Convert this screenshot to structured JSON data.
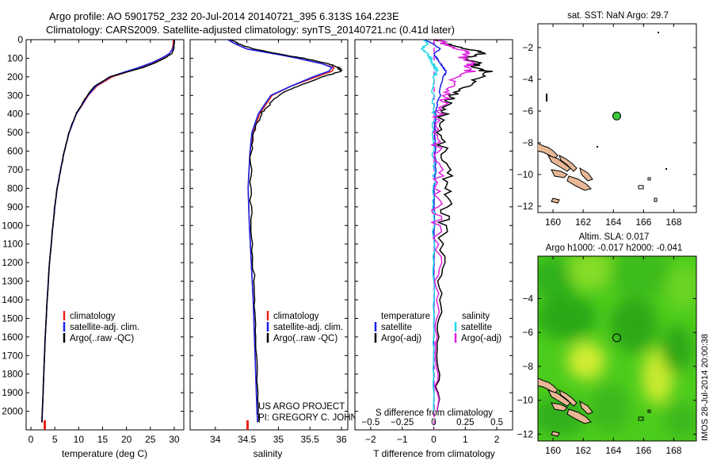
{
  "header": {
    "title_line1": "Argo profile: AO 5901752_232 20-Jul-2014 20140721_395 6.313S 164.223E",
    "title_line2": "Climatology: CARS2009. Satellite-adjusted climatology: synTS_20140721.nc (0.41d later)"
  },
  "side_label": "IMOS 28-Jul-2014 20:00:38",
  "colors": {
    "climatology": "#e8231a",
    "satellite": "#1a23e8",
    "argo": "#000000",
    "sal_satellite": "#22d8e8",
    "sal_argo": "#e020e0",
    "land": "#e8b896",
    "float_marker": "#3cc83c",
    "sla_base": "#4ccc1c"
  },
  "chart_data": [
    {
      "id": "temperature",
      "type": "line",
      "xlabel": "temperature (deg C)",
      "ylabel": "",
      "xlim": [
        -1,
        32
      ],
      "ylim": [
        2100,
        0
      ],
      "xticks": [
        0,
        5,
        10,
        15,
        20,
        25,
        30
      ],
      "yticks": [
        0,
        100,
        200,
        300,
        400,
        500,
        600,
        700,
        800,
        900,
        1000,
        1100,
        1200,
        1300,
        1400,
        1500,
        1600,
        1700,
        1800,
        1900,
        2000
      ],
      "legend": [
        "climatology",
        "satellite-adj. clim.",
        "Argo(..raw -QC)"
      ],
      "depth": [
        0,
        20,
        50,
        75,
        100,
        125,
        150,
        175,
        200,
        250,
        300,
        350,
        400,
        500,
        600,
        700,
        800,
        900,
        1000,
        1200,
        1400,
        1600,
        1800,
        2000,
        2060
      ],
      "series": [
        {
          "name": "climatology",
          "values": [
            29.8,
            29.8,
            29.6,
            29.0,
            27.5,
            25.5,
            23.0,
            20.0,
            17.0,
            13.8,
            12.0,
            10.8,
            9.5,
            8.0,
            7.0,
            6.2,
            5.5,
            5.0,
            4.6,
            3.9,
            3.4,
            3.0,
            2.7,
            2.4,
            2.3
          ]
        },
        {
          "name": "satellite",
          "values": [
            30.0,
            30.0,
            29.7,
            29.0,
            27.3,
            25.2,
            22.6,
            19.5,
            16.6,
            13.6,
            11.9,
            10.7,
            9.5,
            8.0,
            7.0,
            6.2,
            5.5,
            5.0,
            4.6,
            3.9,
            3.4,
            3.0,
            2.7,
            2.4,
            2.3
          ]
        },
        {
          "name": "argo",
          "values": [
            30.0,
            30.0,
            29.9,
            29.5,
            28.0,
            26.0,
            23.5,
            20.0,
            16.5,
            13.3,
            11.8,
            10.6,
            9.4,
            8.0,
            7.0,
            6.2,
            5.5,
            5.0,
            4.6,
            3.9,
            3.4,
            3.0,
            2.7,
            2.4,
            2.3
          ]
        }
      ]
    },
    {
      "id": "salinity",
      "type": "line",
      "xlabel": "salinity",
      "xlim": [
        33.6,
        36.1
      ],
      "ylim": [
        2100,
        0
      ],
      "xticks": [
        34,
        34.5,
        35,
        35.5,
        36
      ],
      "legend": [
        "climatology",
        "satellite-adj. clim.",
        "Argo(..raw -QC)"
      ],
      "depth": [
        0,
        20,
        50,
        80,
        100,
        130,
        150,
        170,
        200,
        250,
        300,
        350,
        400,
        500,
        600,
        800,
        1000,
        1200,
        1400,
        1600,
        1800,
        2000,
        2060
      ],
      "series": [
        {
          "name": "climatology",
          "values": [
            34.2,
            34.3,
            34.5,
            35.0,
            35.3,
            35.7,
            35.88,
            35.85,
            35.6,
            35.2,
            34.9,
            34.8,
            34.7,
            34.6,
            34.55,
            34.52,
            34.54,
            34.57,
            34.6,
            34.62,
            34.64,
            34.66,
            34.67
          ]
        },
        {
          "name": "satellite",
          "values": [
            34.2,
            34.3,
            34.5,
            35.0,
            35.3,
            35.7,
            35.85,
            35.8,
            35.55,
            35.2,
            34.88,
            34.78,
            34.68,
            34.58,
            34.55,
            34.52,
            34.54,
            34.57,
            34.6,
            34.62,
            34.64,
            34.66,
            34.67
          ]
        },
        {
          "name": "argo",
          "values": [
            34.25,
            34.35,
            34.6,
            35.05,
            35.4,
            35.8,
            35.95,
            36.0,
            35.7,
            35.3,
            35.0,
            34.85,
            34.72,
            34.62,
            34.57,
            34.55,
            34.57,
            34.6,
            34.62,
            34.64,
            34.66,
            34.68,
            34.7
          ]
        }
      ],
      "annotation_line1": "US ARGO PROJECT",
      "annotation_line2": "PI: GREGORY C. JOHNSON"
    },
    {
      "id": "difference",
      "type": "line",
      "xlabel": "T difference from climatology",
      "xlabel_top": "S difference from climatology",
      "xlim": [
        -2.5,
        2.5
      ],
      "ylim": [
        2100,
        0
      ],
      "xticks": [
        -2,
        -1,
        0,
        1,
        2
      ],
      "xticks_top_values": [
        -0.5,
        -0.25,
        0,
        0.25,
        0.5
      ],
      "xticks_top": [
        "−0.5",
        "−0.25",
        "0",
        "0.25",
        "0.5"
      ],
      "legend_col1_title": "temperature",
      "legend_col2_title": "salinity",
      "legend_col1": [
        "satellite",
        "Argo(-adj)"
      ],
      "legend_col2": [
        "satellite",
        "Argo(-adj)"
      ],
      "depth": [
        0,
        25,
        50,
        75,
        100,
        125,
        150,
        175,
        200,
        250,
        300,
        350,
        400,
        500,
        600,
        700,
        800,
        900,
        1000,
        1200,
        1400,
        1600,
        1800,
        2000
      ],
      "series": [
        {
          "name": "T satellite",
          "values": [
            -0.3,
            0.0,
            0.2,
            0.0,
            0.1,
            0.2,
            0.3,
            0.4,
            0.3,
            0.2,
            0.2,
            0.1,
            0.05,
            0.05,
            0.05,
            0.05,
            0.02,
            0.02,
            0.02,
            0.01,
            0.01,
            0.0,
            0.0,
            0.0
          ]
        },
        {
          "name": "T argo",
          "values": [
            0.1,
            0.5,
            1.1,
            1.6,
            0.9,
            1.5,
            1.2,
            1.8,
            1.5,
            1.0,
            0.6,
            0.4,
            0.3,
            0.2,
            0.3,
            0.4,
            0.5,
            0.4,
            0.3,
            0.2,
            0.2,
            0.15,
            0.15,
            0.1
          ]
        },
        {
          "name": "S satellite",
          "values": [
            -0.3,
            -0.2,
            -0.4,
            -0.2,
            -0.1,
            -0.05,
            0.05,
            0.1,
            0.0,
            -0.05,
            0.0,
            -0.02,
            0.0,
            0.0,
            -0.01,
            0.0,
            0.0,
            0.0,
            0.0,
            0.0,
            0.0,
            0.0,
            0.0,
            0.0
          ]
        },
        {
          "name": "S argo",
          "values": [
            0.2,
            0.4,
            0.8,
            1.1,
            0.9,
            1.3,
            1.0,
            1.2,
            0.7,
            0.5,
            0.4,
            0.3,
            0.15,
            0.1,
            0.1,
            0.15,
            0.15,
            0.1,
            0.1,
            0.1,
            0.1,
            0.1,
            0.1,
            0.1
          ]
        }
      ]
    },
    {
      "id": "sst_map",
      "type": "scatter",
      "title": "sat. SST: NaN Argo: 29.7",
      "xlim": [
        159,
        169.5
      ],
      "ylim": [
        -12.4,
        -0.5
      ],
      "xticks": [
        160,
        162,
        164,
        166,
        168
      ],
      "yticks": [
        -2,
        -4,
        -6,
        -8,
        -10,
        -12
      ],
      "float_position": {
        "lon": 164.223,
        "lat": -6.313
      }
    },
    {
      "id": "sla_map",
      "type": "heatmap",
      "title_line1": "Altim. SLA: 0.017",
      "title_line2": "Argo h1000: -0.017 h2000: -0.041",
      "xlim": [
        159,
        169.5
      ],
      "ylim": [
        -12.4,
        -1.5
      ],
      "xticks": [
        160,
        162,
        164,
        166,
        168
      ],
      "yticks": [
        -4,
        -6,
        -8,
        -10,
        -12
      ],
      "float_position": {
        "lon": 164.223,
        "lat": -6.313
      }
    }
  ]
}
